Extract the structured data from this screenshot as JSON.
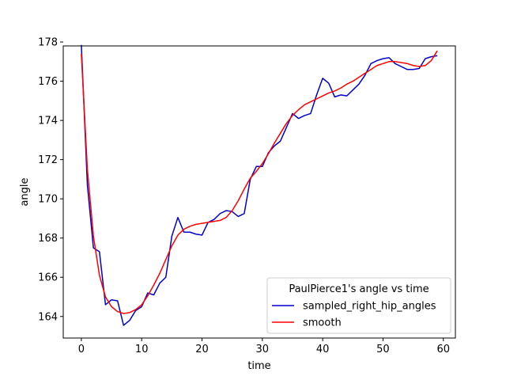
{
  "chart_data": {
    "type": "line",
    "title": "",
    "xlabel": "time",
    "ylabel": "angle",
    "xlim": [
      -3,
      62
    ],
    "ylim": [
      162.9,
      177.8
    ],
    "xticks": [
      0,
      10,
      20,
      30,
      40,
      50,
      60
    ],
    "yticks": [
      164,
      166,
      168,
      170,
      172,
      174,
      176,
      178
    ],
    "grid": false,
    "legend": {
      "title": "PaulPierce1's angle vs time",
      "placement": "lower-right"
    },
    "series": [
      {
        "name": "sampled_right_hip_angles",
        "color": "#0000cc",
        "x": [
          0,
          1,
          2,
          3,
          4,
          5,
          6,
          7,
          8,
          9,
          10,
          11,
          12,
          13,
          14,
          15,
          16,
          17,
          18,
          19,
          20,
          21,
          22,
          23,
          24,
          25,
          26,
          27,
          28,
          29,
          30,
          31,
          32,
          33,
          34,
          35,
          36,
          37,
          38,
          39,
          40,
          41,
          42,
          43,
          44,
          45,
          46,
          47,
          48,
          49,
          50,
          51,
          52,
          53,
          54,
          55,
          56,
          57,
          58,
          59
        ],
        "values": [
          177.85,
          170.7,
          167.5,
          167.3,
          164.6,
          164.85,
          164.8,
          163.55,
          163.8,
          164.3,
          164.5,
          165.2,
          165.1,
          165.7,
          166.0,
          168.1,
          169.05,
          168.3,
          168.3,
          168.2,
          168.15,
          168.8,
          168.95,
          169.25,
          169.4,
          169.35,
          169.1,
          169.25,
          171.0,
          171.65,
          171.65,
          172.35,
          172.7,
          172.95,
          173.65,
          174.35,
          174.1,
          174.25,
          174.35,
          175.3,
          176.15,
          175.9,
          175.2,
          175.3,
          175.25,
          175.55,
          175.85,
          176.3,
          176.9,
          177.05,
          177.15,
          177.2,
          176.9,
          176.75,
          176.6,
          176.6,
          176.65,
          177.15,
          177.25,
          177.3
        ]
      },
      {
        "name": "smooth",
        "color": "#ff0000",
        "x": [
          0,
          1,
          2,
          3,
          4,
          5,
          6,
          7,
          8,
          9,
          10,
          11,
          12,
          13,
          14,
          15,
          16,
          17,
          18,
          19,
          20,
          21,
          22,
          23,
          24,
          25,
          26,
          27,
          28,
          29,
          30,
          31,
          32,
          33,
          34,
          35,
          36,
          37,
          38,
          39,
          40,
          41,
          42,
          43,
          44,
          45,
          46,
          47,
          48,
          49,
          50,
          51,
          52,
          53,
          54,
          55,
          56,
          57,
          58,
          59
        ],
        "values": [
          177.4,
          171.5,
          168.1,
          166.1,
          165.0,
          164.5,
          164.25,
          164.15,
          164.2,
          164.35,
          164.6,
          165.05,
          165.6,
          166.2,
          166.9,
          167.6,
          168.15,
          168.45,
          168.6,
          168.7,
          168.75,
          168.8,
          168.85,
          168.9,
          169.05,
          169.4,
          169.9,
          170.5,
          171.05,
          171.4,
          171.8,
          172.3,
          172.85,
          173.35,
          173.85,
          174.25,
          174.55,
          174.8,
          174.95,
          175.1,
          175.25,
          175.4,
          175.5,
          175.65,
          175.85,
          176.0,
          176.2,
          176.4,
          176.6,
          176.8,
          176.9,
          177.0,
          177.0,
          176.95,
          176.9,
          176.8,
          176.75,
          176.8,
          177.05,
          177.55
        ]
      }
    ]
  }
}
